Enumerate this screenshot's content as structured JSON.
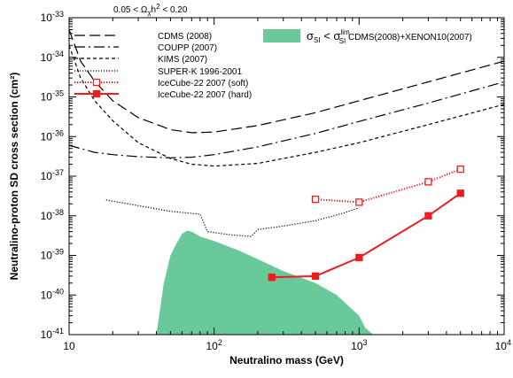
{
  "chart_data": {
    "type": "line",
    "title": "",
    "xlabel": "Neutralino mass (GeV)",
    "ylabel": "Neutralino-proton SD cross section (cm²)",
    "x_scale": "log",
    "y_scale": "log",
    "xlim": [
      10,
      10000
    ],
    "ylim": [
      1e-41,
      1e-33
    ],
    "x_ticks": [
      {
        "value": 10,
        "base": "10",
        "exp": ""
      },
      {
        "value": 100,
        "base": "10",
        "exp": "2"
      },
      {
        "value": 1000,
        "base": "10",
        "exp": "3"
      },
      {
        "value": 10000,
        "base": "10",
        "exp": "4"
      }
    ],
    "y_ticks": [
      {
        "value": 1e-41,
        "base": "10",
        "exp": "-41"
      },
      {
        "value": 1e-40,
        "base": "10",
        "exp": "-40"
      },
      {
        "value": 1e-39,
        "base": "10",
        "exp": "-39"
      },
      {
        "value": 1e-38,
        "base": "10",
        "exp": "-38"
      },
      {
        "value": 1e-37,
        "base": "10",
        "exp": "-37"
      },
      {
        "value": 1e-36,
        "base": "10",
        "exp": "-36"
      },
      {
        "value": 1e-35,
        "base": "10",
        "exp": "-35"
      },
      {
        "value": 1e-34,
        "base": "10",
        "exp": "-34"
      },
      {
        "value": 1e-33,
        "base": "10",
        "exp": "-33"
      }
    ],
    "condition_label": {
      "prefix": "0.05 < Ω",
      "sub": "χ",
      "mid": "h",
      "sup": "2",
      "suffix": " < 0.20"
    },
    "band_label": {
      "sigma": "σ",
      "sub1": "SI",
      "lt": " < σ",
      "sup2": "lim",
      "sub2": "SI",
      "suffix": " CDMS(2008)+XENON10(2007)"
    },
    "legend_position": "top-left",
    "series": [
      {
        "name": "CDMS (2008)",
        "style": "long-dash",
        "color": "#000000",
        "markers": false,
        "points": [
          [
            10,
            5e-34
          ],
          [
            12,
            8e-35
          ],
          [
            15,
            2.5e-35
          ],
          [
            20,
            8e-36
          ],
          [
            30,
            3e-36
          ],
          [
            50,
            1.5e-36
          ],
          [
            70,
            1.25e-36
          ],
          [
            100,
            1.3e-36
          ],
          [
            200,
            1.9e-36
          ],
          [
            500,
            4e-36
          ],
          [
            1000,
            8e-36
          ],
          [
            3000,
            2.4e-35
          ],
          [
            10000,
            8e-35
          ]
        ]
      },
      {
        "name": "COUPP (2007)",
        "style": "dash-dot",
        "color": "#000000",
        "markers": false,
        "points": [
          [
            10,
            6e-37
          ],
          [
            15,
            4e-37
          ],
          [
            20,
            3.5e-37
          ],
          [
            30,
            3.1e-37
          ],
          [
            50,
            2.9e-37
          ],
          [
            70,
            3e-37
          ],
          [
            100,
            3.5e-37
          ],
          [
            200,
            5.5e-37
          ],
          [
            500,
            1.2e-36
          ],
          [
            1000,
            2.4e-36
          ],
          [
            3000,
            7e-36
          ],
          [
            10000,
            2.4e-35
          ]
        ]
      },
      {
        "name": "KIMS (2007)",
        "style": "short-dash",
        "color": "#000000",
        "markers": false,
        "points": [
          [
            10,
            2e-34
          ],
          [
            12,
            3e-35
          ],
          [
            15,
            8e-36
          ],
          [
            20,
            2.5e-36
          ],
          [
            30,
            7e-37
          ],
          [
            50,
            2.8e-37
          ],
          [
            70,
            2e-37
          ],
          [
            100,
            1.8e-37
          ],
          [
            200,
            2.1e-37
          ],
          [
            500,
            4e-37
          ],
          [
            1000,
            7e-37
          ],
          [
            3000,
            2e-36
          ],
          [
            10000,
            6.5e-36
          ]
        ]
      },
      {
        "name": "SUPER-K 1996-2001",
        "style": "dotted",
        "color": "#000000",
        "markers": false,
        "points": [
          [
            18,
            2.5e-38
          ],
          [
            30,
            1.8e-38
          ],
          [
            50,
            1.3e-38
          ],
          [
            80,
            1.1e-38
          ],
          [
            90,
            4e-39
          ],
          [
            130,
            3.3e-39
          ],
          [
            180,
            3e-39
          ],
          [
            200,
            4.5e-39
          ],
          [
            300,
            5.5e-39
          ],
          [
            500,
            7.5e-39
          ],
          [
            800,
            1.2e-38
          ],
          [
            1000,
            1.6e-38
          ]
        ]
      },
      {
        "name": "IceCube-22 2007 (soft)",
        "style": "dotted",
        "color": "#ee1c1c",
        "markers": "open-square",
        "points": [
          [
            500,
            2.6e-38
          ],
          [
            1000,
            2.2e-38
          ],
          [
            3000,
            7.2e-38
          ],
          [
            5000,
            1.5e-37
          ]
        ]
      },
      {
        "name": "IceCube-22 2007 (hard)",
        "style": "solid",
        "color": "#ee1c1c",
        "markers": "filled-square",
        "points": [
          [
            250,
            2.8e-40
          ],
          [
            500,
            3e-40
          ],
          [
            1000,
            8.8e-40
          ],
          [
            3000,
            1e-38
          ],
          [
            5000,
            3.7e-38
          ]
        ]
      }
    ],
    "band": {
      "color": "#69c99a",
      "points": [
        [
          40,
          1e-41
        ],
        [
          45,
          2e-40
        ],
        [
          50,
          1e-39
        ],
        [
          55,
          2e-39
        ],
        [
          60,
          3.5e-39
        ],
        [
          65,
          4.2e-39
        ],
        [
          70,
          4e-39
        ],
        [
          80,
          3e-39
        ],
        [
          100,
          2.3e-39
        ],
        [
          150,
          1.3e-39
        ],
        [
          200,
          8e-40
        ],
        [
          300,
          4e-40
        ],
        [
          500,
          2e-40
        ],
        [
          700,
          1e-40
        ],
        [
          1000,
          3e-41
        ],
        [
          1100,
          1.5e-41
        ],
        [
          1250,
          1e-41
        ]
      ]
    }
  }
}
